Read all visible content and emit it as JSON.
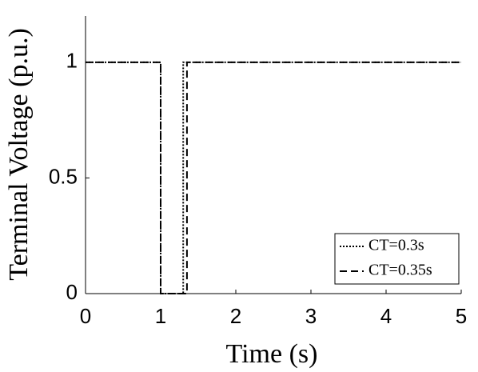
{
  "chart_data": {
    "type": "line",
    "xlabel": "Time (s)",
    "ylabel": "Terminal Voltage (p.u.)",
    "xlim": [
      0,
      5
    ],
    "ylim": [
      0,
      1.2
    ],
    "xticks": [
      0,
      1,
      2,
      3,
      4,
      5
    ],
    "yticks": [
      0,
      0.5,
      1
    ],
    "legend_position": "lower right",
    "series": [
      {
        "name": "CT=0.3s",
        "color": "#000000",
        "dash": "dotted",
        "x": [
          0,
          1,
          1,
          1.3,
          1.3,
          5
        ],
        "values": [
          1,
          1,
          0,
          0,
          1,
          1
        ]
      },
      {
        "name": "CT=0.35s",
        "color": "#000000",
        "dash": "dashed",
        "x": [
          0,
          1,
          1,
          1.35,
          1.35,
          5
        ],
        "values": [
          1,
          1,
          0,
          0,
          1,
          1
        ]
      }
    ]
  }
}
